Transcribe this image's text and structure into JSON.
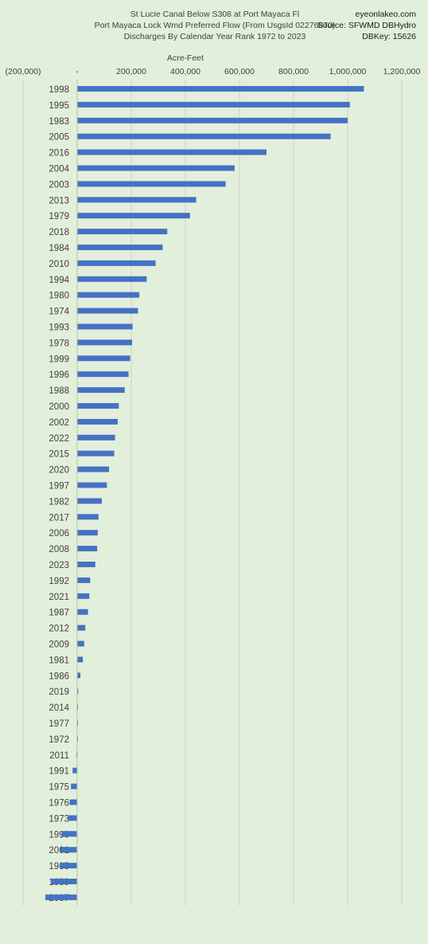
{
  "header": {
    "title_lines": [
      "St Lucie Canal Below S308 at Port Mayaca Fl",
      "Port Mayaca Lock Wmd Preferred Flow (From UsgsId 02276870)",
      "Discharges By Calendar Year Rank 1972 to 2023"
    ],
    "source_lines": [
      "eyeonlakeo.com",
      "Source: SFWMD DBHydro",
      "DBKey: 15626"
    ]
  },
  "colors": {
    "background": "#e2efda",
    "bar": "#4472c4",
    "grid": "#c9d4c4",
    "text": "#404040"
  },
  "chart_data": {
    "type": "bar",
    "orientation": "horizontal",
    "title": "St Lucie Canal Below S308 at Port Mayaca Fl",
    "xlabel": "Acre-Feet",
    "xlim": [
      -200000,
      1200000
    ],
    "xticks": [
      -200000,
      0,
      200000,
      400000,
      600000,
      800000,
      1000000,
      1200000
    ],
    "xtick_labels": [
      "(200,000)",
      "-",
      "200,000",
      "400,000",
      "600,000",
      "800,000",
      "1,000,000",
      "1,200,000"
    ],
    "grid": true,
    "categories": [
      "1998",
      "1995",
      "1983",
      "2005",
      "2016",
      "2004",
      "2003",
      "2013",
      "1979",
      "2018",
      "1984",
      "2010",
      "1994",
      "1980",
      "1974",
      "1993",
      "1978",
      "1999",
      "1996",
      "1988",
      "2000",
      "2002",
      "2022",
      "2015",
      "2020",
      "1997",
      "1982",
      "2017",
      "2006",
      "2008",
      "2023",
      "1992",
      "2021",
      "1987",
      "2012",
      "2009",
      "1981",
      "1986",
      "2019",
      "2014",
      "1977",
      "1972",
      "2011",
      "1991",
      "1975",
      "1976",
      "1973",
      "1990",
      "2001",
      "1985",
      "1989",
      "2007"
    ],
    "values": [
      1060000,
      1008000,
      1000000,
      937000,
      700000,
      582000,
      549000,
      440000,
      417000,
      333000,
      316000,
      290000,
      257000,
      230000,
      225000,
      205000,
      203000,
      196000,
      190000,
      176000,
      154000,
      150000,
      140000,
      137000,
      118000,
      110000,
      91000,
      79000,
      76000,
      74000,
      67000,
      48000,
      45000,
      40000,
      30000,
      26000,
      21000,
      12000,
      4000,
      3000,
      3000,
      2000,
      -3000,
      -17000,
      -23000,
      -28000,
      -35000,
      -58000,
      -62000,
      -65000,
      -98000,
      -118000
    ]
  }
}
